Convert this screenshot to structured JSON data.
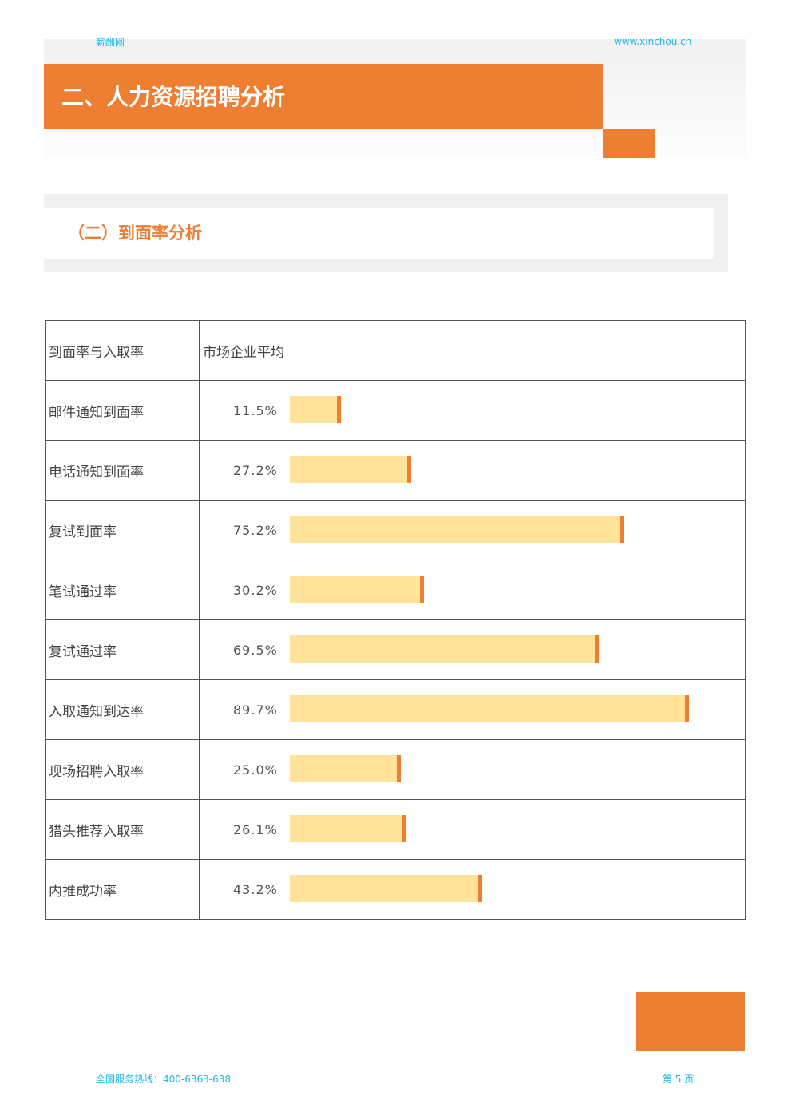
{
  "header": {
    "brand": "薪酬网",
    "url": "www.xinchou.cn",
    "title": "二、人力资源招聘分析",
    "accent": "#ed7e32"
  },
  "section": {
    "title": "（二）到面率分析"
  },
  "table": {
    "headers": [
      "到面率与入取率",
      "市场企业平均"
    ],
    "rows": [
      {
        "label": "邮件通知到面率",
        "value": "11.5%",
        "pct": 11.5
      },
      {
        "label": "电话通知到面率",
        "value": "27.2%",
        "pct": 27.2
      },
      {
        "label": "复试到面率",
        "value": "75.2%",
        "pct": 75.2
      },
      {
        "label": "笔试通过率",
        "value": "30.2%",
        "pct": 30.2
      },
      {
        "label": "复试通过率",
        "value": "69.5%",
        "pct": 69.5
      },
      {
        "label": "入取通知到达率",
        "value": "89.7%",
        "pct": 89.7
      },
      {
        "label": "现场招聘入取率",
        "value": "25.0%",
        "pct": 25.0
      },
      {
        "label": "猎头推荐入取率",
        "value": "26.1%",
        "pct": 26.1
      },
      {
        "label": "内推成功率",
        "value": "43.2%",
        "pct": 43.2
      }
    ]
  },
  "footer": {
    "hotline": "全国服务热线：400-6363-638",
    "page": "第 5 页"
  }
}
